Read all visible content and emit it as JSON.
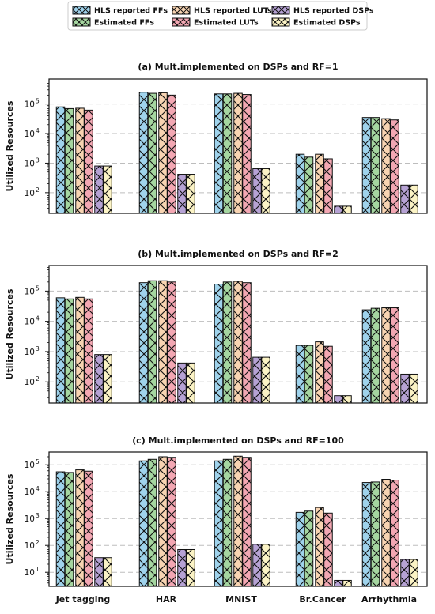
{
  "legend": {
    "items": [
      {
        "label": "HLS reported FFs",
        "color": "#9fd3ec"
      },
      {
        "label": "Estimated FFs",
        "color": "#a5d6a0"
      },
      {
        "label": "HLS reported LUTs",
        "color": "#f8d4b2"
      },
      {
        "label": "Estimated LUTs",
        "color": "#f3a7b3"
      },
      {
        "label": "HLS reported DSPs",
        "color": "#b6a2d4"
      },
      {
        "label": "Estimated DSPs",
        "color": "#fbf3c5"
      }
    ],
    "placement": "top-center"
  },
  "chart_data": [
    {
      "type": "bar",
      "title": "(a) Mult.implemented on DSPs and RF=1",
      "ylabel": "Utilized Resources",
      "yscale": "log",
      "ylim": [
        20,
        700000
      ],
      "yticks": [
        {
          "v": 100,
          "b": "10",
          "e": "2"
        },
        {
          "v": 1000,
          "b": "10",
          "e": "3"
        },
        {
          "v": 10000,
          "b": "10",
          "e": "4"
        },
        {
          "v": 100000,
          "b": "10",
          "e": "5"
        }
      ],
      "grid": true,
      "categories": [
        "Jet tagging",
        "HAR",
        "MNIST",
        "Br.Cancer",
        "Arrhythmia"
      ],
      "series": [
        {
          "name": "HLS reported FFs",
          "values": [
            80000,
            250000,
            220000,
            2000,
            35000
          ]
        },
        {
          "name": "Estimated FFs",
          "values": [
            70000,
            230000,
            220000,
            1600,
            35000
          ]
        },
        {
          "name": "HLS reported LUTs",
          "values": [
            72000,
            240000,
            230000,
            2000,
            32000
          ]
        },
        {
          "name": "Estimated LUTs",
          "values": [
            62000,
            200000,
            210000,
            1400,
            29000
          ]
        },
        {
          "name": "HLS reported DSPs",
          "values": [
            800,
            420,
            650,
            35,
            180
          ]
        },
        {
          "name": "Estimated DSPs",
          "values": [
            800,
            420,
            650,
            35,
            180
          ]
        }
      ]
    },
    {
      "type": "bar",
      "title": "(b) Mult.implemented on DSPs and RF=2",
      "ylabel": "Utilized Resources",
      "yscale": "log",
      "ylim": [
        20,
        700000
      ],
      "yticks": [
        {
          "v": 100,
          "b": "10",
          "e": "2"
        },
        {
          "v": 1000,
          "b": "10",
          "e": "3"
        },
        {
          "v": 10000,
          "b": "10",
          "e": "4"
        },
        {
          "v": 100000,
          "b": "10",
          "e": "5"
        }
      ],
      "grid": true,
      "categories": [
        "Jet tagging",
        "HAR",
        "MNIST",
        "Br.Cancer",
        "Arrhythmia"
      ],
      "series": [
        {
          "name": "HLS reported FFs",
          "values": [
            60000,
            190000,
            170000,
            1600,
            24000
          ]
        },
        {
          "name": "Estimated FFs",
          "values": [
            55000,
            220000,
            200000,
            1600,
            27000
          ]
        },
        {
          "name": "HLS reported LUTs",
          "values": [
            62000,
            220000,
            210000,
            2100,
            28000
          ]
        },
        {
          "name": "Estimated LUTs",
          "values": [
            55000,
            200000,
            190000,
            1500,
            28000
          ]
        },
        {
          "name": "HLS reported DSPs",
          "values": [
            800,
            420,
            650,
            35,
            180
          ]
        },
        {
          "name": "Estimated DSPs",
          "values": [
            800,
            420,
            650,
            35,
            180
          ]
        }
      ]
    },
    {
      "type": "bar",
      "title": "(c) Mult.implemented on DSPs and RF=100",
      "ylabel": "Utilized Resources",
      "yscale": "log",
      "ylim": [
        3,
        300000
      ],
      "yticks": [
        {
          "v": 10,
          "b": "10",
          "e": "1"
        },
        {
          "v": 100,
          "b": "10",
          "e": "2"
        },
        {
          "v": 1000,
          "b": "10",
          "e": "3"
        },
        {
          "v": 10000,
          "b": "10",
          "e": "4"
        },
        {
          "v": 100000,
          "b": "10",
          "e": "5"
        }
      ],
      "grid": true,
      "categories": [
        "Jet tagging",
        "HAR",
        "MNIST",
        "Br.Cancer",
        "Arrhythmia"
      ],
      "series": [
        {
          "name": "HLS reported FFs",
          "values": [
            55000,
            140000,
            140000,
            1700,
            22000
          ]
        },
        {
          "name": "Estimated FFs",
          "values": [
            52000,
            160000,
            160000,
            1900,
            23000
          ]
        },
        {
          "name": "HLS reported LUTs",
          "values": [
            65000,
            200000,
            210000,
            2600,
            29000
          ]
        },
        {
          "name": "Estimated LUTs",
          "values": [
            58000,
            190000,
            190000,
            1600,
            27000
          ]
        },
        {
          "name": "HLS reported DSPs",
          "values": [
            35,
            70,
            110,
            5,
            30
          ]
        },
        {
          "name": "Estimated DSPs",
          "values": [
            35,
            70,
            110,
            5,
            30
          ]
        }
      ]
    }
  ]
}
